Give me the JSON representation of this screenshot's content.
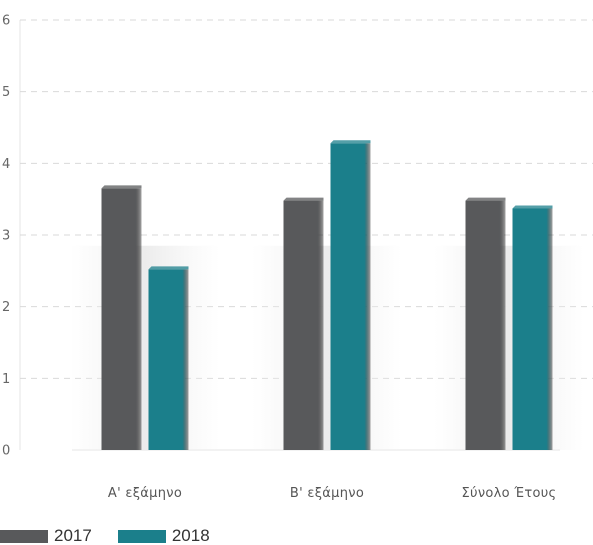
{
  "chart_data": {
    "type": "bar",
    "title": "",
    "xlabel": "",
    "ylabel": "",
    "categories": [
      "Α' εξάμηνο",
      "Β' εξάμηνο",
      "Σύνολο Έτους"
    ],
    "series": [
      {
        "name": "2017",
        "values": [
          3.65,
          3.48,
          3.48
        ],
        "color": "#58595b"
      },
      {
        "name": "2018",
        "values": [
          2.52,
          4.28,
          3.37
        ],
        "color": "#1b7f8b"
      }
    ],
    "ylim": [
      0,
      6
    ],
    "yticks": [
      "0",
      "1",
      "2",
      "3",
      "4",
      "5",
      "6"
    ],
    "grid": true,
    "legend_position": "bottom-left"
  }
}
